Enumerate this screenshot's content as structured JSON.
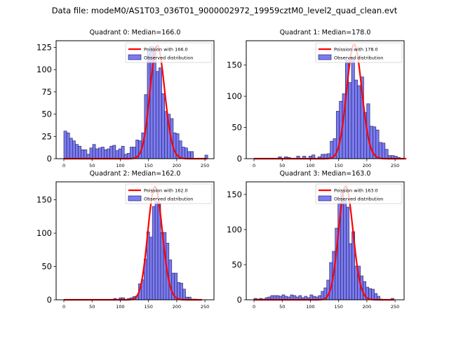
{
  "figure": {
    "suptitle": "Data file: modeM0/AS1T03_036T01_9000002972_19959cztM0_level2_quad_clean.evt"
  },
  "colors": {
    "bar_fill": "#7b7bf2",
    "bar_edge": "#2a2a6a",
    "poisson_line": "#ff0000"
  },
  "chart_data": [
    {
      "type": "bar",
      "title": "Quadrant 0: Median=166.0",
      "legend": [
        "Poission with 166.0",
        "Observed distribution"
      ],
      "legend_position": "top-right",
      "bin_width": 5.1,
      "bin_start": 0,
      "values": [
        31,
        29,
        23,
        20,
        16,
        14,
        10,
        10,
        5,
        12,
        16,
        11,
        12,
        13,
        10,
        11,
        14,
        15,
        9,
        11,
        14,
        5,
        6,
        13,
        13,
        21,
        20,
        29,
        72,
        120,
        126,
        125,
        98,
        102,
        73,
        53,
        50,
        45,
        29,
        28,
        20,
        13,
        12,
        8,
        8,
        0,
        0,
        0,
        0,
        4
      ],
      "poisson_mean": 166.0,
      "poisson_peak": 127,
      "xlim": [
        -13.7,
        266
      ],
      "ylim": [
        0,
        132.5
      ],
      "xticks": [
        0,
        50,
        100,
        150,
        200,
        250
      ],
      "yticks": [
        0,
        25,
        50,
        75,
        100,
        125
      ]
    },
    {
      "type": "bar",
      "title": "Quadrant 1: Median=178.0",
      "legend": [
        "Poission with 178.0",
        "Observed distribution"
      ],
      "legend_position": "top-right",
      "bin_width": 5.4,
      "bin_start": 0,
      "values": [
        0,
        0,
        0,
        0,
        0,
        0,
        0,
        0,
        3,
        0,
        3,
        2,
        0,
        0,
        4,
        0,
        4,
        0,
        4,
        6,
        0,
        3,
        7,
        7,
        8,
        28,
        32,
        76,
        92,
        104,
        158,
        122,
        160,
        126,
        117,
        131,
        74,
        88,
        52,
        51,
        46,
        26,
        25,
        15,
        5,
        5,
        4,
        2,
        0,
        0
      ],
      "poisson_mean": 178.0,
      "poisson_peak": 183,
      "xlim": [
        -13.7,
        266
      ],
      "ylim": [
        0,
        189
      ],
      "xticks": [
        0,
        50,
        100,
        150,
        200,
        250
      ],
      "yticks": [
        0,
        50,
        100,
        150
      ]
    },
    {
      "type": "bar",
      "title": "Quadrant 2: Median=162.0",
      "legend": [
        "Poission with 162.0",
        "Observed distribution"
      ],
      "legend_position": "top-right",
      "bin_width": 4.9,
      "bin_start": 0,
      "values": [
        0,
        0,
        0,
        0,
        0,
        0,
        0,
        0,
        0,
        0,
        0,
        0,
        0,
        0,
        0,
        0,
        0,
        0,
        2,
        0,
        3,
        3,
        0,
        2,
        3,
        5,
        6,
        24,
        30,
        61,
        102,
        94,
        140,
        147,
        145,
        101,
        101,
        85,
        60,
        40,
        40,
        26,
        25,
        16,
        4,
        4,
        1,
        1,
        0,
        0
      ],
      "poisson_mean": 162.0,
      "poisson_peak": 170,
      "xlim": [
        -13.7,
        266
      ],
      "ylim": [
        0,
        177
      ],
      "xticks": [
        0,
        50,
        100,
        150,
        200,
        250
      ],
      "yticks": [
        0,
        50,
        100,
        150
      ]
    },
    {
      "type": "bar",
      "title": "Quadrant 3: Median=163.0",
      "legend": [
        "Poission with 163.0",
        "Observed distribution"
      ],
      "legend_position": "top-right",
      "bin_width": 4.96,
      "bin_start": 0,
      "values": [
        2,
        1,
        2,
        1,
        3,
        4,
        6,
        6,
        6,
        5,
        7,
        5,
        4,
        7,
        6,
        4,
        6,
        3,
        5,
        3,
        7,
        5,
        4,
        6,
        12,
        17,
        28,
        53,
        69,
        102,
        138,
        152,
        142,
        132,
        80,
        97,
        48,
        48,
        34,
        26,
        18,
        16,
        15,
        9,
        5,
        1,
        0,
        0,
        0,
        2
      ],
      "poisson_mean": 163.0,
      "poisson_peak": 162,
      "xlim": [
        -13.7,
        266
      ],
      "ylim": [
        0,
        168
      ],
      "xticks": [
        0,
        50,
        100,
        150,
        200,
        250
      ],
      "yticks": [
        0,
        50,
        100,
        150
      ]
    }
  ]
}
